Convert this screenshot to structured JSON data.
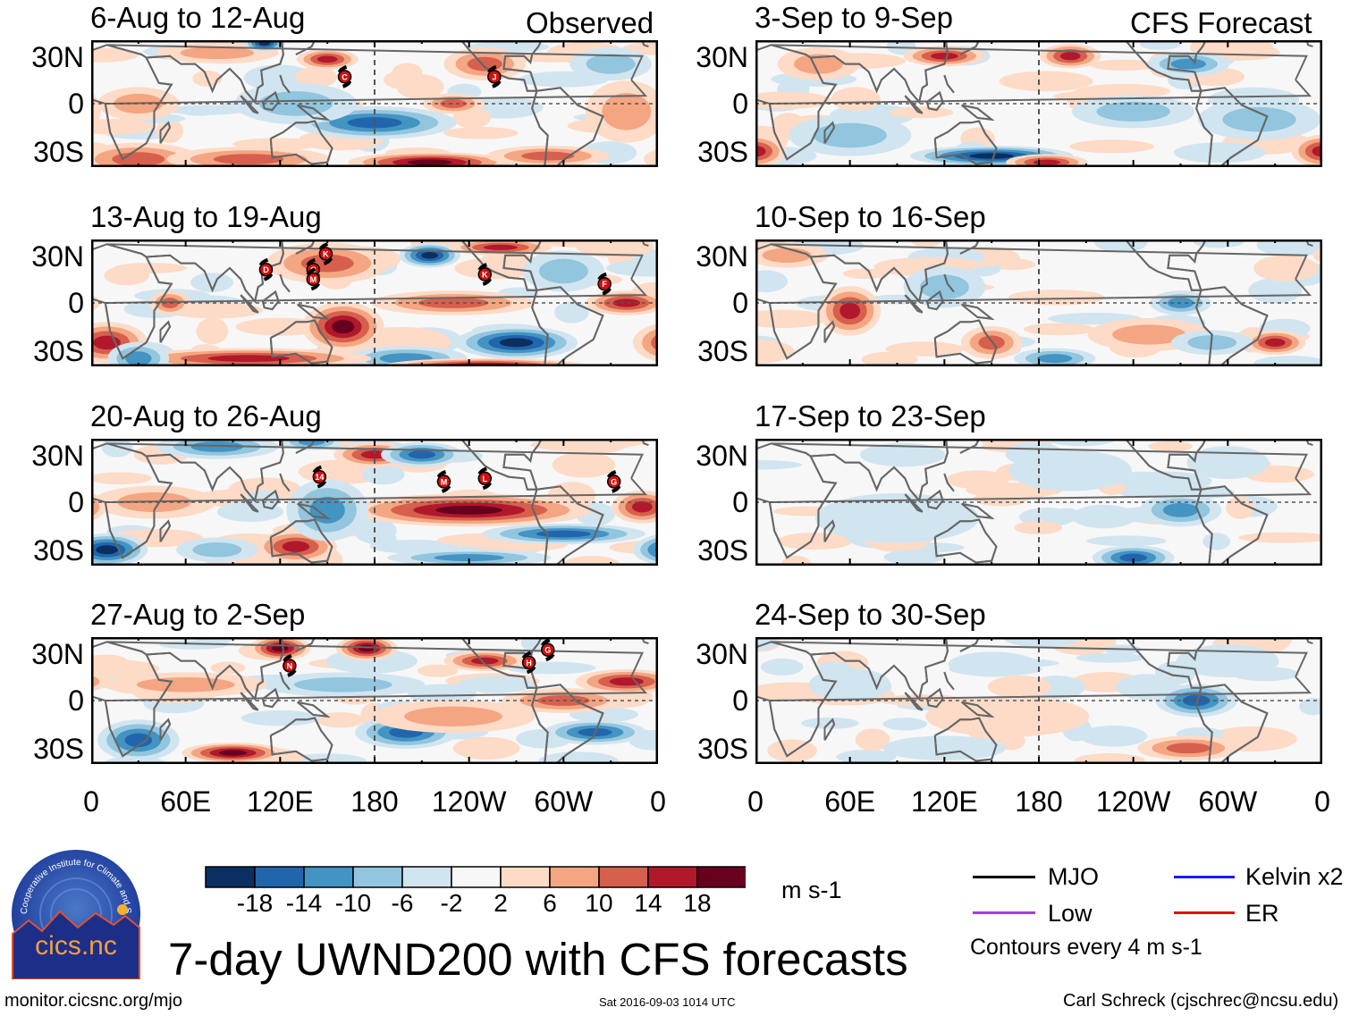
{
  "chart_data": {
    "type": "heatmap",
    "title": "7-day UWND200 with CFS forecasts",
    "units": "m s-1",
    "contour_note": "Contours every 4 m s-1",
    "columns": [
      {
        "header": "Observed",
        "panels": [
          {
            "title": "6-Aug to 12-Aug",
            "storms": [
              "C",
              "J"
            ]
          },
          {
            "title": "13-Aug to 19-Aug",
            "storms": [
              "D",
              "C",
              "M",
              "K",
              "K",
              "F"
            ]
          },
          {
            "title": "20-Aug to 26-Aug",
            "storms": [
              "14",
              "M",
              "L",
              "G"
            ]
          },
          {
            "title": "27-Aug to 2-Sep",
            "storms": [
              "N",
              "H",
              "G"
            ]
          }
        ]
      },
      {
        "header": "CFS Forecast",
        "panels": [
          {
            "title": "3-Sep to 9-Sep",
            "storms": []
          },
          {
            "title": "10-Sep to 16-Sep",
            "storms": []
          },
          {
            "title": "17-Sep to 23-Sep",
            "storms": []
          },
          {
            "title": "24-Sep to 30-Sep",
            "storms": []
          }
        ]
      }
    ],
    "y_ticks": [
      "30N",
      "0",
      "30S"
    ],
    "x_ticks": [
      "0",
      "60E",
      "120E",
      "180",
      "120W",
      "60W",
      "0"
    ],
    "colorbar": {
      "levels": [
        "-18",
        "-14",
        "-10",
        "-6",
        "-2",
        "2",
        "6",
        "10",
        "14",
        "18"
      ],
      "colors": [
        "#0b2f60",
        "#2166ac",
        "#4393c3",
        "#92c5de",
        "#d1e5f0",
        "#f7f7f7",
        "#fddbc7",
        "#f4a582",
        "#d6604d",
        "#b2182b",
        "#67001f"
      ]
    },
    "legend": [
      {
        "label": "MJO",
        "color": "#000000"
      },
      {
        "label": "Low",
        "color": "#a040e0"
      },
      {
        "label": "Kelvin x2",
        "color": "#1a1aff"
      },
      {
        "label": "ER",
        "color": "#e01010"
      }
    ]
  },
  "logo_text": "cics.nc",
  "logo_ring_text": "Cooperative Institute for Climate and Satellites",
  "footer": {
    "url": "monitor.cicsnc.org/mjo",
    "timestamp": "Sat 2016-09-03 1014 UTC",
    "author": "Carl Schreck (cjschrec@ncsu.edu)"
  }
}
